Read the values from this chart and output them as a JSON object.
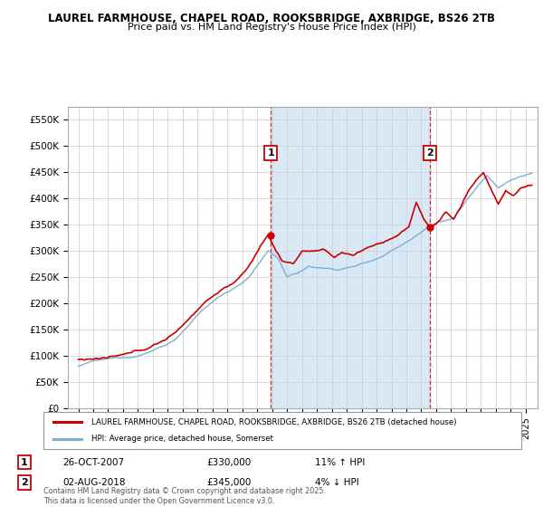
{
  "title_line1": "LAUREL FARMHOUSE, CHAPEL ROAD, ROOKSBRIDGE, AXBRIDGE, BS26 2TB",
  "title_line2": "Price paid vs. HM Land Registry's House Price Index (HPI)",
  "ylim": [
    0,
    575000
  ],
  "yticks": [
    0,
    50000,
    100000,
    150000,
    200000,
    250000,
    300000,
    350000,
    400000,
    450000,
    500000,
    550000
  ],
  "ytick_labels": [
    "£0",
    "£50K",
    "£100K",
    "£150K",
    "£200K",
    "£250K",
    "£300K",
    "£350K",
    "£400K",
    "£450K",
    "£500K",
    "£550K"
  ],
  "annotation1_date": "26-OCT-2007",
  "annotation1_price": "£330,000",
  "annotation1_hpi": "11% ↑ HPI",
  "annotation2_date": "02-AUG-2018",
  "annotation2_price": "£345,000",
  "annotation2_hpi": "4% ↓ HPI",
  "legend_label1": "LAUREL FARMHOUSE, CHAPEL ROAD, ROOKSBRIDGE, AXBRIDGE, BS26 2TB (detached house)",
  "legend_label2": "HPI: Average price, detached house, Somerset",
  "footer_text": "Contains HM Land Registry data © Crown copyright and database right 2025.\nThis data is licensed under the Open Government Licence v3.0.",
  "line_color_property": "#cc0000",
  "line_color_hpi": "#7ab0d4",
  "shade_color": "#d9e8f5",
  "grid_color": "#cccccc",
  "vline1_x": 2007.917,
  "vline2_x": 2018.583,
  "marker1_price": 330000,
  "marker2_price": 345000,
  "xlim_left": 1994.3,
  "xlim_right": 2025.8
}
